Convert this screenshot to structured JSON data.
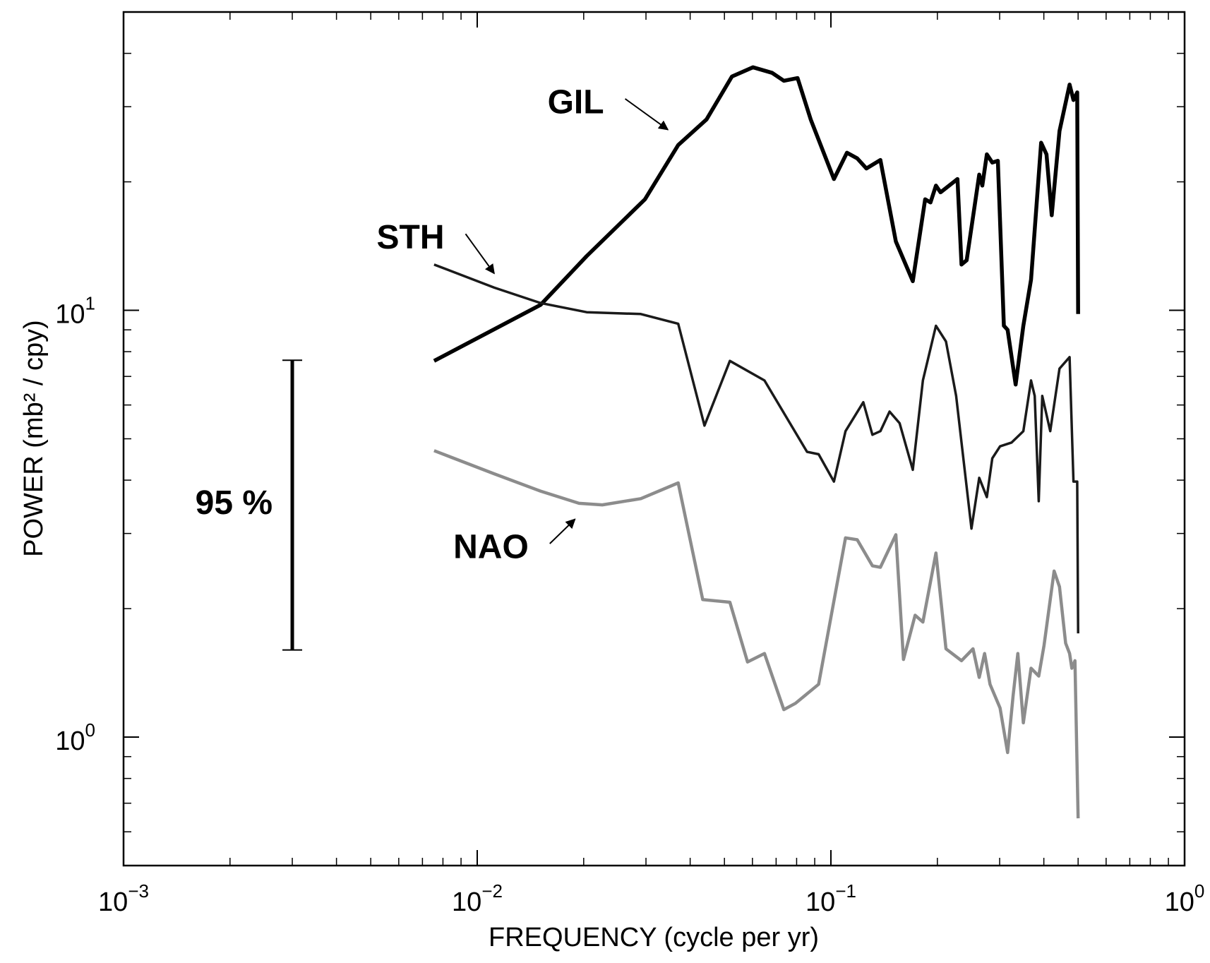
{
  "chart_data": {
    "type": "line",
    "xlabel": "FREQUENCY (cycle per yr)",
    "ylabel": "POWER (mb² / cpy)",
    "xscale": "log",
    "yscale": "log",
    "xlim": [
      0.001,
      1
    ],
    "ylim": [
      0.5,
      50
    ],
    "xticks": [
      {
        "value": 0.001,
        "label": "10",
        "exponent": "−3"
      },
      {
        "value": 0.01,
        "label": "10",
        "exponent": "−2"
      },
      {
        "value": 0.1,
        "label": "10",
        "exponent": "−1"
      },
      {
        "value": 1,
        "label": "10",
        "exponent": "0"
      }
    ],
    "yticks": [
      {
        "value": 1,
        "label": "10",
        "exponent": "0"
      },
      {
        "value": 10,
        "label": "10",
        "exponent": "1"
      }
    ],
    "xminorticks": [
      0.002,
      0.003,
      0.004,
      0.005,
      0.006,
      0.007,
      0.008,
      0.009,
      0.02,
      0.03,
      0.04,
      0.05,
      0.06,
      0.07,
      0.08,
      0.09,
      0.2,
      0.3,
      0.4,
      0.5,
      0.6,
      0.7,
      0.8,
      0.9
    ],
    "yminorticks": [
      0.5,
      0.6,
      0.7,
      0.8,
      0.9,
      2,
      3,
      4,
      5,
      6,
      7,
      8,
      9,
      20,
      30,
      40,
      50
    ],
    "series": [
      {
        "name": "GIL",
        "color": "#000000",
        "x": [
          0.00755,
          0.0151,
          0.0204,
          0.0298,
          0.037,
          0.0445,
          0.0525,
          0.0602,
          0.0682,
          0.0736,
          0.0805,
          0.0877,
          0.102,
          0.111,
          0.1187,
          0.126,
          0.138,
          0.1526,
          0.1704,
          0.1847,
          0.1913,
          0.1982,
          0.2042,
          0.228,
          0.234,
          0.242,
          0.2626,
          0.268,
          0.276,
          0.286,
          0.2965,
          0.3083,
          0.316,
          0.333,
          0.35,
          0.368,
          0.393,
          0.407,
          0.421,
          0.443,
          0.473,
          0.485,
          0.497,
          0.5
        ],
        "values": [
          7.61,
          10.3,
          13.4,
          18.2,
          24.4,
          28.0,
          35.3,
          37.1,
          36.0,
          34.5,
          35.0,
          28.0,
          20.3,
          23.4,
          22.7,
          21.5,
          22.5,
          14.5,
          11.7,
          18.2,
          17.9,
          19.6,
          18.9,
          20.3,
          12.8,
          13.1,
          20.8,
          19.6,
          23.2,
          22.2,
          22.4,
          9.2,
          9.0,
          6.7,
          9.2,
          11.8,
          24.7,
          23.2,
          16.7,
          26.3,
          33.8,
          31.1,
          32.4,
          9.8
        ]
      },
      {
        "name": "STH",
        "color": "#1a1a1a",
        "x": [
          0.00755,
          0.01117,
          0.0151,
          0.0204,
          0.029,
          0.037,
          0.0439,
          0.0518,
          0.0649,
          0.0856,
          0.0923,
          0.102,
          0.11,
          0.1235,
          0.131,
          0.138,
          0.1465,
          0.1564,
          0.1704,
          0.182,
          0.1982,
          0.2115,
          0.226,
          0.2497,
          0.2626,
          0.276,
          0.286,
          0.3008,
          0.3243,
          0.35,
          0.368,
          0.377,
          0.387,
          0.396,
          0.417,
          0.443,
          0.473,
          0.485,
          0.497,
          0.5
        ],
        "values": [
          12.8,
          11.3,
          10.4,
          9.9,
          9.8,
          9.3,
          5.37,
          7.61,
          6.85,
          4.66,
          4.6,
          3.97,
          5.21,
          6.09,
          5.11,
          5.21,
          5.79,
          5.44,
          4.23,
          6.85,
          9.2,
          8.45,
          6.3,
          3.08,
          4.05,
          3.65,
          4.5,
          4.8,
          4.9,
          5.21,
          6.85,
          6.3,
          3.57,
          6.3,
          5.21,
          7.3,
          7.77,
          3.97,
          3.97,
          1.75
        ]
      },
      {
        "name": "NAO",
        "color": "#8c8c8c",
        "x": [
          0.00755,
          0.01117,
          0.0151,
          0.0194,
          0.02258,
          0.029,
          0.037,
          0.0434,
          0.0518,
          0.0581,
          0.0649,
          0.0736,
          0.0794,
          0.0923,
          0.11,
          0.1187,
          0.131,
          0.138,
          0.1526,
          0.1604,
          0.173,
          0.182,
          0.1982,
          0.2115,
          0.234,
          0.2522,
          0.2626,
          0.272,
          0.2818,
          0.3008,
          0.316,
          0.3275,
          0.3377,
          0.35,
          0.368,
          0.387,
          0.4005,
          0.4277,
          0.443,
          0.461,
          0.473,
          0.48,
          0.4898,
          0.5
        ],
        "values": [
          4.69,
          4.14,
          3.77,
          3.53,
          3.5,
          3.62,
          3.94,
          2.1,
          2.07,
          1.5,
          1.57,
          1.16,
          1.2,
          1.33,
          2.93,
          2.9,
          2.52,
          2.5,
          2.98,
          1.52,
          1.93,
          1.86,
          2.7,
          1.61,
          1.51,
          1.61,
          1.38,
          1.57,
          1.33,
          1.17,
          0.92,
          1.25,
          1.57,
          1.08,
          1.45,
          1.39,
          1.64,
          2.45,
          2.25,
          1.66,
          1.57,
          1.45,
          1.51,
          0.645
        ]
      }
    ],
    "annotations": [
      {
        "text": "GIL",
        "xy": [
          0.0346,
          26.5
        ],
        "xytext": [
          0.0262,
          31.3
        ]
      },
      {
        "text": "STH",
        "xy": [
          0.01117,
          12.2
        ],
        "xytext": [
          0.00927,
          15.1
        ]
      },
      {
        "text": "NAO",
        "xy": [
          0.0189,
          3.24
        ],
        "xytext": [
          0.01604,
          2.84
        ]
      }
    ],
    "confidence_bar": {
      "label": "95 %",
      "x": 0.003,
      "low": 1.6,
      "high": 7.64
    }
  }
}
